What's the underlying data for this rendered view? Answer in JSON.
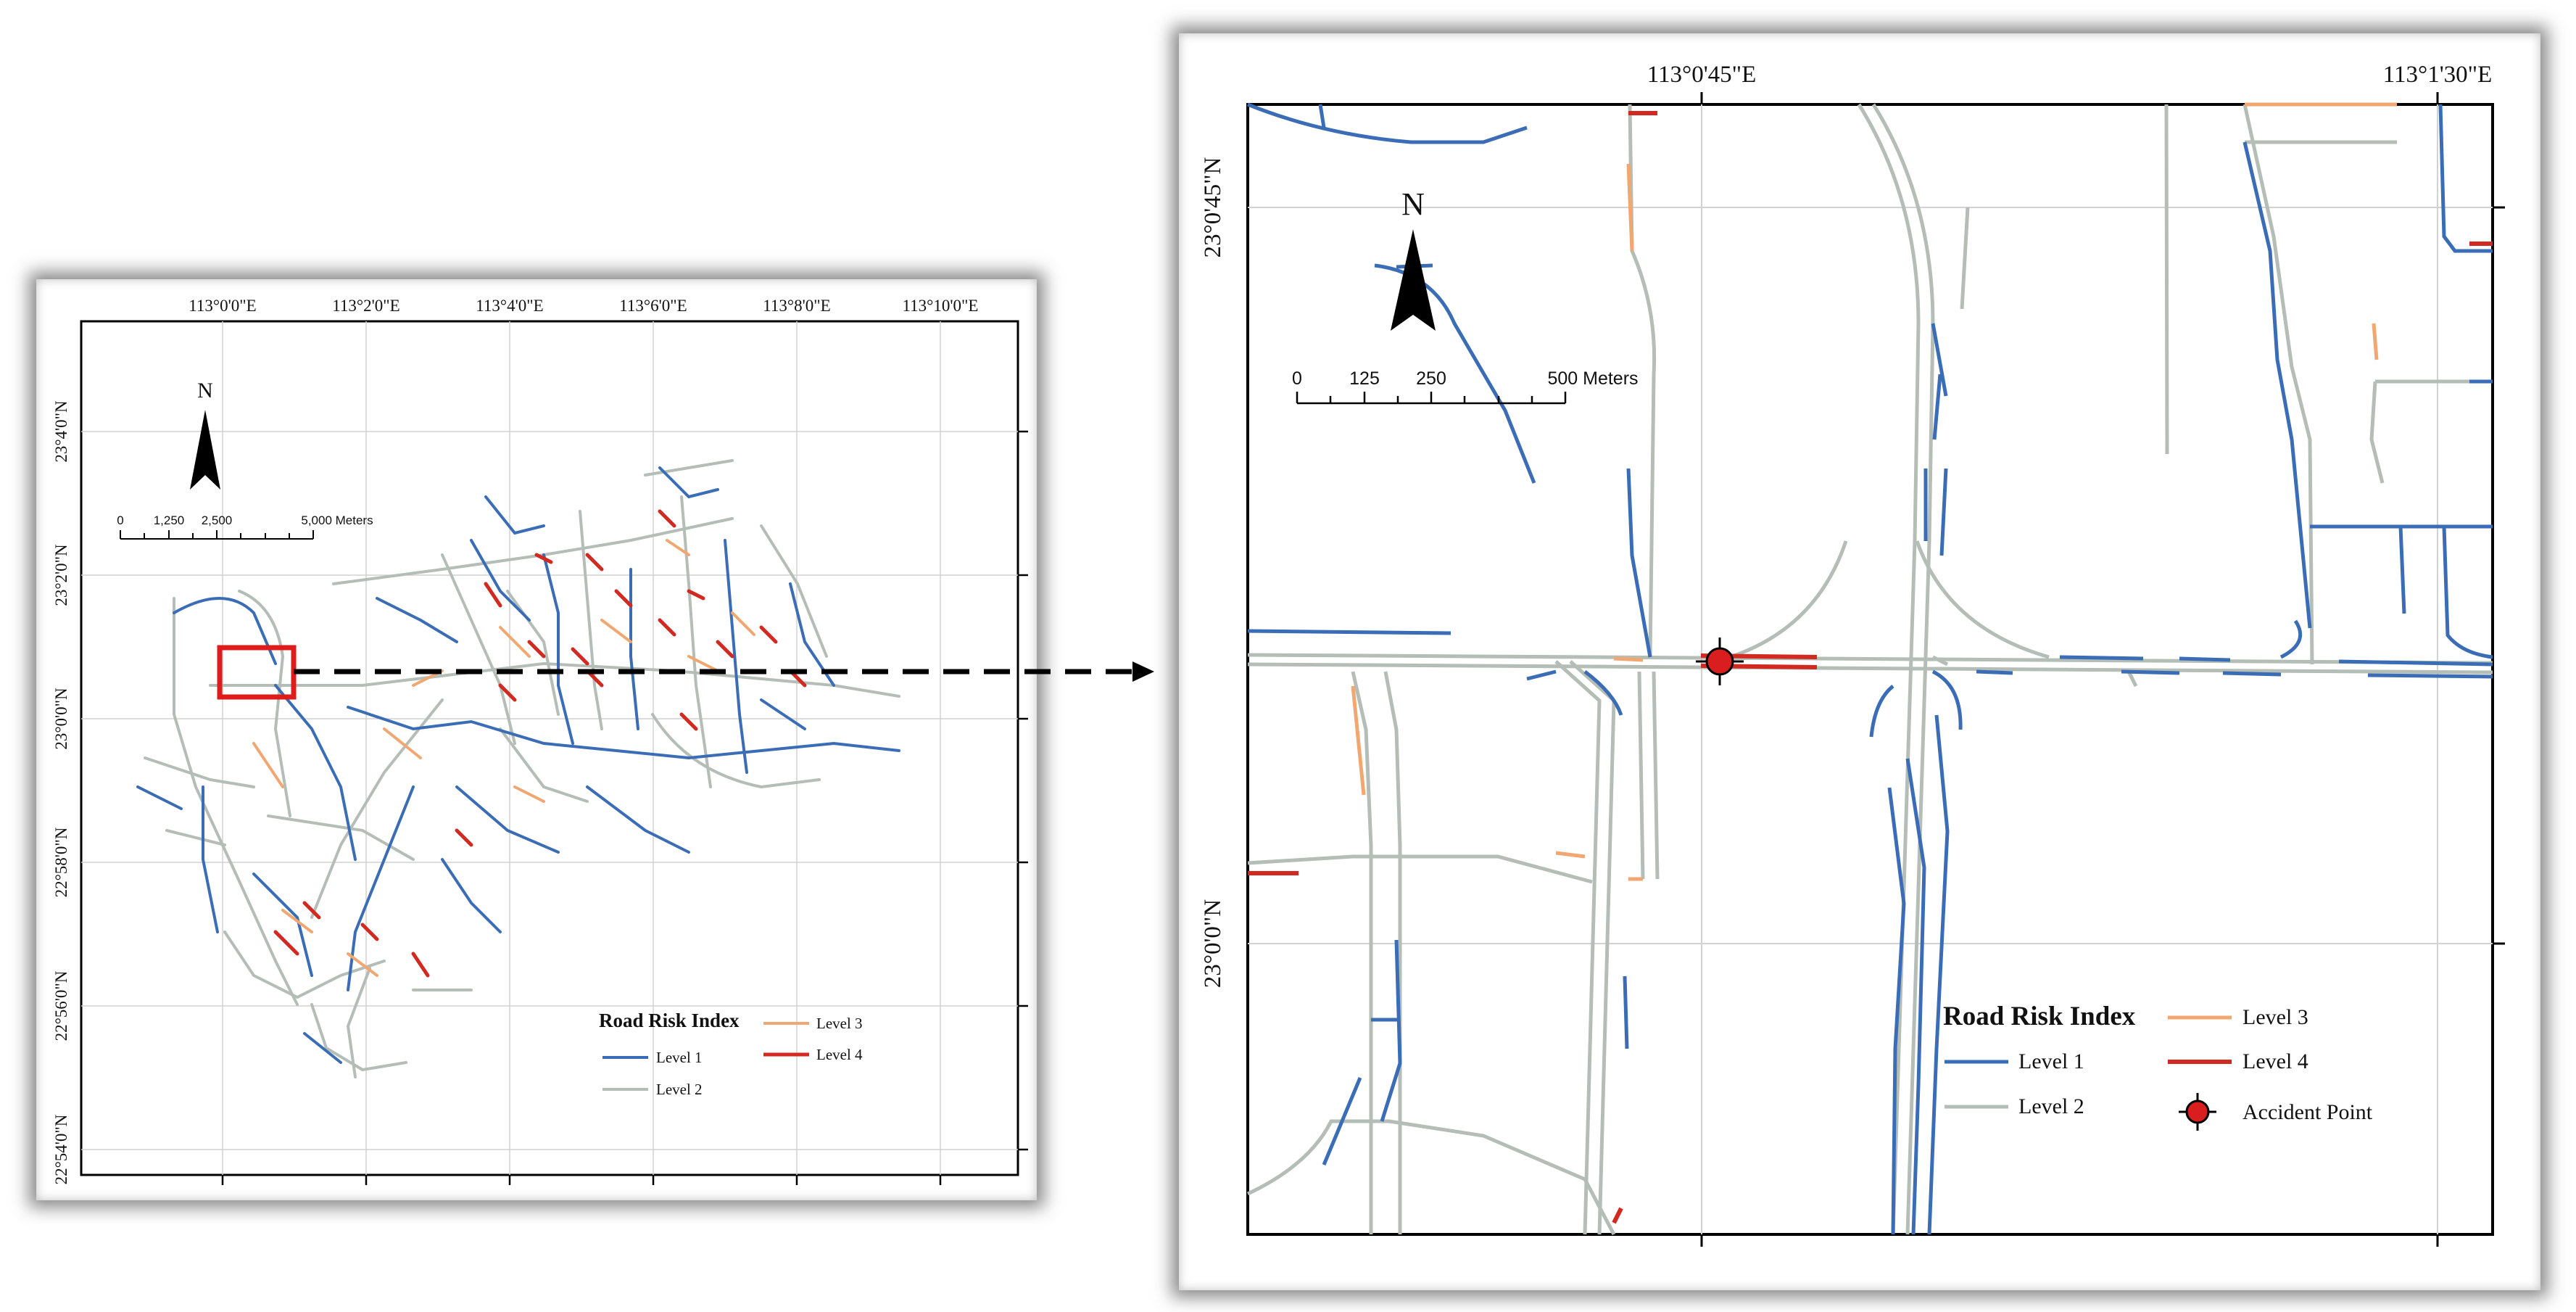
{
  "overview_map": {
    "lon_ticks": [
      "113°0'0\"E",
      "113°2'0\"E",
      "113°4'0\"E",
      "113°6'0\"E",
      "113°8'0\"E",
      "113°10'0\"E"
    ],
    "lat_ticks": [
      "23°4'0\"N",
      "23°2'0\"N",
      "23°0'0\"N",
      "22°58'0\"N",
      "22°56'0\"N",
      "22°54'0\"N"
    ],
    "north_arrow_label": "N",
    "scale_bar": {
      "labels": [
        "0",
        "1,250",
        "2,500",
        "5,000 Meters"
      ]
    },
    "legend": {
      "title": "Road Risk Index",
      "items": [
        {
          "label": "Level 1",
          "color": "#3a6db5"
        },
        {
          "label": "Level 2",
          "color": "#b4bdb6"
        },
        {
          "label": "Level 3",
          "color": "#f1a771"
        },
        {
          "label": "Level 4",
          "color": "#d22a20"
        }
      ]
    }
  },
  "detail_map": {
    "lon_ticks": [
      "113°0'45\"E",
      "113°1'30\"E"
    ],
    "lat_ticks": [
      "23°0'45\"N",
      "23°0'0\"N"
    ],
    "north_arrow_label": "N",
    "scale_bar": {
      "labels": [
        "0",
        "125",
        "250",
        "500 Meters"
      ]
    },
    "legend": {
      "title": "Road Risk Index",
      "items": [
        {
          "label": "Level 1",
          "color": "#3a6db5"
        },
        {
          "label": "Level 2",
          "color": "#b4bdb6"
        },
        {
          "label": "Level 3",
          "color": "#f1a771"
        },
        {
          "label": "Level 4",
          "color": "#d22a20"
        },
        {
          "label": "Accident Point",
          "color": "#d81e1e"
        }
      ]
    }
  },
  "colors": {
    "level1": "#3a6db5",
    "level2": "#b4bdb6",
    "level3": "#f1a771",
    "level4": "#d22a20",
    "highlight_box": "#e01b1b"
  }
}
